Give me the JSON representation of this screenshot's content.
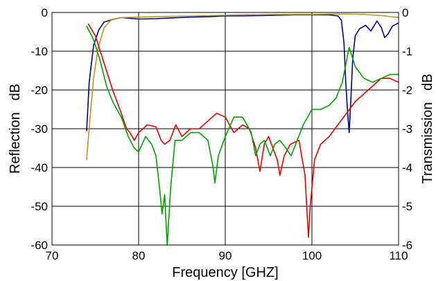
{
  "chart_data": {
    "type": "line",
    "title": "",
    "xlabel": "Frequency [GHZ]",
    "ylabel_left": "Reflection   dB",
    "ylabel_right": "Transmission   dB",
    "xlim": [
      70,
      110
    ],
    "ylim_left": [
      -60,
      0
    ],
    "ylim_right": [
      -6,
      0
    ],
    "x_ticks": [
      70,
      80,
      90,
      100,
      110
    ],
    "y_ticks_left": [
      0,
      -10,
      -20,
      -30,
      -40,
      -50,
      -60
    ],
    "y_ticks_right": [
      0,
      -1,
      -2,
      -3,
      -4,
      -5,
      -6
    ],
    "grid": true,
    "legend": "none",
    "series": [
      {
        "axis": "right",
        "color": "#00008b",
        "points": [
          [
            74.0,
            -3.05
          ],
          [
            74.3,
            -1.8
          ],
          [
            74.8,
            -0.85
          ],
          [
            75.4,
            -0.45
          ],
          [
            76.0,
            -0.25
          ],
          [
            77.0,
            -0.18
          ],
          [
            78.0,
            -0.13
          ],
          [
            80,
            -0.17
          ],
          [
            82,
            -0.16
          ],
          [
            84,
            -0.14
          ],
          [
            86,
            -0.12
          ],
          [
            88,
            -0.11
          ],
          [
            90,
            -0.09
          ],
          [
            92,
            -0.09
          ],
          [
            94,
            -0.08
          ],
          [
            96,
            -0.07
          ],
          [
            98,
            -0.06
          ],
          [
            100,
            -0.06
          ],
          [
            102,
            -0.06
          ],
          [
            103,
            -0.09
          ],
          [
            103.4,
            -0.2
          ],
          [
            103.7,
            -0.8
          ],
          [
            103.9,
            -1.8
          ],
          [
            104.1,
            -2.5
          ],
          [
            104.3,
            -3.1
          ],
          [
            104.5,
            -2.2
          ],
          [
            104.7,
            -1.2
          ],
          [
            105.0,
            -0.6
          ],
          [
            105.5,
            -0.42
          ],
          [
            106.2,
            -0.33
          ],
          [
            106.8,
            -0.48
          ],
          [
            107.5,
            -0.22
          ],
          [
            108.0,
            -0.38
          ],
          [
            108.4,
            -0.65
          ],
          [
            108.8,
            -0.55
          ],
          [
            109.3,
            -0.35
          ],
          [
            110,
            -0.27
          ]
        ]
      },
      {
        "axis": "right",
        "color": "#b09a28",
        "points": [
          [
            74.0,
            -3.8
          ],
          [
            74.4,
            -2.7
          ],
          [
            74.8,
            -1.7
          ],
          [
            75.3,
            -0.95
          ],
          [
            76.0,
            -0.4
          ],
          [
            76.8,
            -0.2
          ],
          [
            78,
            -0.13
          ],
          [
            80,
            -0.12
          ],
          [
            84,
            -0.1
          ],
          [
            88,
            -0.08
          ],
          [
            92,
            -0.06
          ],
          [
            96,
            -0.05
          ],
          [
            100,
            -0.05
          ],
          [
            102,
            -0.04
          ],
          [
            104,
            -0.04
          ],
          [
            106,
            -0.05
          ],
          [
            108,
            -0.08
          ],
          [
            110,
            -0.13
          ]
        ]
      },
      {
        "axis": "left",
        "color": "#e00000",
        "points": [
          [
            74.2,
            -3
          ],
          [
            75.0,
            -6
          ],
          [
            76.0,
            -13
          ],
          [
            77.0,
            -20
          ],
          [
            78.0,
            -26
          ],
          [
            78.6,
            -30
          ],
          [
            79.0,
            -31
          ],
          [
            79.5,
            -33
          ],
          [
            80.0,
            -31
          ],
          [
            81.0,
            -29
          ],
          [
            82.0,
            -29.5
          ],
          [
            82.6,
            -33
          ],
          [
            83.0,
            -34
          ],
          [
            83.6,
            -33
          ],
          [
            84.3,
            -29
          ],
          [
            85.0,
            -32
          ],
          [
            86.0,
            -30
          ],
          [
            87.0,
            -30
          ],
          [
            88.0,
            -28
          ],
          [
            89.0,
            -26
          ],
          [
            90.0,
            -27
          ],
          [
            91.0,
            -31
          ],
          [
            92.0,
            -29
          ],
          [
            92.8,
            -30
          ],
          [
            93.5,
            -35
          ],
          [
            94.0,
            -41
          ],
          [
            94.5,
            -34
          ],
          [
            95.0,
            -32
          ],
          [
            96.0,
            -38
          ],
          [
            96.3,
            -42
          ],
          [
            96.8,
            -37
          ],
          [
            97.5,
            -34
          ],
          [
            98.5,
            -33
          ],
          [
            99.2,
            -42
          ],
          [
            99.6,
            -58
          ],
          [
            99.8,
            -50
          ],
          [
            100.3,
            -38
          ],
          [
            101.0,
            -34
          ],
          [
            102.0,
            -32
          ],
          [
            103.0,
            -29
          ],
          [
            104.0,
            -26
          ],
          [
            105.0,
            -23
          ],
          [
            106.0,
            -21
          ],
          [
            107.0,
            -19
          ],
          [
            108.0,
            -17
          ],
          [
            109.0,
            -17
          ],
          [
            110.0,
            -18
          ]
        ]
      },
      {
        "axis": "left",
        "color": "#00a000",
        "points": [
          [
            74.0,
            -3.5
          ],
          [
            74.8,
            -7
          ],
          [
            75.5,
            -12
          ],
          [
            76.3,
            -19
          ],
          [
            77.0,
            -23
          ],
          [
            78.0,
            -27
          ],
          [
            78.8,
            -32
          ],
          [
            79.5,
            -35
          ],
          [
            80.0,
            -36
          ],
          [
            80.8,
            -32
          ],
          [
            81.5,
            -34
          ],
          [
            82.0,
            -37
          ],
          [
            82.4,
            -45
          ],
          [
            82.7,
            -52
          ],
          [
            83.0,
            -47
          ],
          [
            83.3,
            -60
          ],
          [
            83.7,
            -45
          ],
          [
            84.2,
            -33
          ],
          [
            85.0,
            -33
          ],
          [
            86.0,
            -31
          ],
          [
            87.0,
            -31
          ],
          [
            88.0,
            -33
          ],
          [
            88.6,
            -40
          ],
          [
            88.8,
            -44
          ],
          [
            89.2,
            -37
          ],
          [
            90.0,
            -32
          ],
          [
            91.0,
            -27
          ],
          [
            92.0,
            -27
          ],
          [
            93.0,
            -31
          ],
          [
            93.5,
            -37
          ],
          [
            94.0,
            -34
          ],
          [
            94.5,
            -33
          ],
          [
            95.2,
            -37
          ],
          [
            95.7,
            -34
          ],
          [
            96.3,
            -33
          ],
          [
            97.0,
            -35
          ],
          [
            97.6,
            -37
          ],
          [
            98.3,
            -33
          ],
          [
            99.0,
            -29
          ],
          [
            100.0,
            -25
          ],
          [
            101.0,
            -25
          ],
          [
            102.0,
            -24
          ],
          [
            102.8,
            -22
          ],
          [
            103.5,
            -18
          ],
          [
            104.3,
            -9
          ],
          [
            105.0,
            -14
          ],
          [
            106.0,
            -17
          ],
          [
            107.0,
            -18
          ],
          [
            108.0,
            -17
          ],
          [
            109.0,
            -16
          ],
          [
            110.0,
            -16
          ]
        ]
      }
    ]
  }
}
